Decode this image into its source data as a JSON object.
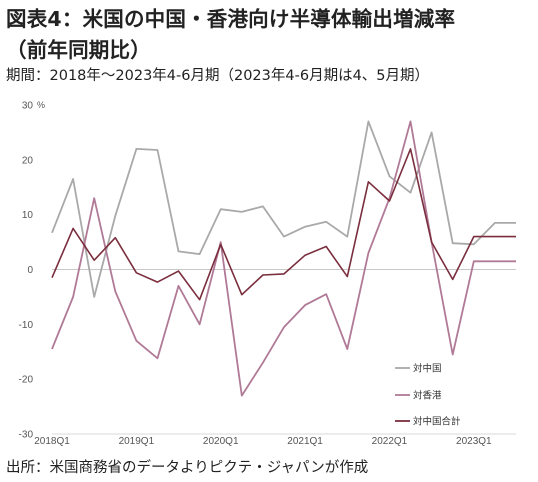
{
  "header": {
    "title_line1": "図表4：米国の中国・香港向け半導体輸出増減率",
    "title_line2": "（前年同期比）",
    "subtitle": "期間：2018年～2023年4-6月期（2023年4-6月期は4、5月期）"
  },
  "footer": {
    "source": "出所：米国商務省のデータよりピクテ・ジャパンが作成"
  },
  "chart_data": {
    "type": "line",
    "unit": "%",
    "ylim": [
      -30,
      30
    ],
    "y_ticks": [
      30,
      20,
      10,
      0,
      -10,
      -20,
      -30
    ],
    "x_count": 23,
    "x_tick_labels": [
      {
        "index": 0,
        "label": "2018Q1"
      },
      {
        "index": 4,
        "label": "2019Q1"
      },
      {
        "index": 8,
        "label": "2020Q1"
      },
      {
        "index": 12,
        "label": "2021Q1"
      },
      {
        "index": 16,
        "label": "2022Q1"
      },
      {
        "index": 20,
        "label": "2023Q1"
      }
    ],
    "grid": false,
    "legend_position": "right",
    "series": [
      {
        "name": "対中国",
        "color": "#a9a9a9",
        "values": [
          6.7,
          16.5,
          -5.0,
          9.8,
          22.0,
          21.8,
          3.3,
          2.8,
          11.0,
          10.5,
          11.5,
          6.0,
          7.8,
          8.7,
          6.0,
          27.0,
          17.0,
          14.0,
          25.0,
          4.8,
          4.6,
          8.5,
          8.5
        ]
      },
      {
        "name": "対香港",
        "color": "#b07a96",
        "values": [
          -14.5,
          -5.0,
          13.0,
          -4.0,
          -13.0,
          -16.2,
          -3.0,
          -10.0,
          5.0,
          -23.0,
          -17.0,
          -10.5,
          -6.5,
          -4.5,
          -14.5,
          3.0,
          13.0,
          27.0,
          5.0,
          -15.5,
          1.5,
          1.5,
          1.5
        ]
      },
      {
        "name": "対中国合計",
        "color": "#7a2e3e",
        "values": [
          -1.5,
          7.5,
          1.7,
          5.8,
          -0.6,
          -2.3,
          -0.3,
          -5.5,
          4.6,
          -4.6,
          -1.0,
          -0.8,
          2.6,
          4.2,
          -1.3,
          16.0,
          12.5,
          22.0,
          5.0,
          -1.8,
          6.0,
          6.0,
          6.0
        ]
      }
    ]
  }
}
